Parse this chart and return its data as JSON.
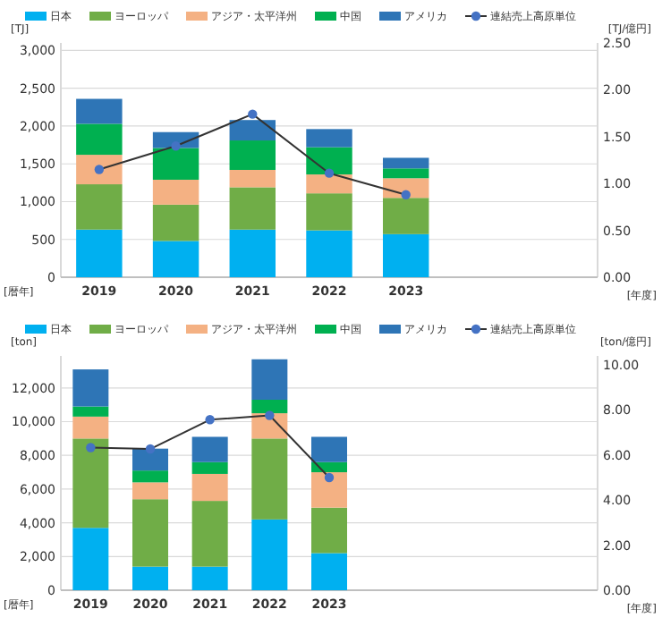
{
  "chart_data": [
    {
      "type": "bar",
      "stacked": true,
      "categories": [
        "2019",
        "2020",
        "2021",
        "2022",
        "2023",
        null,
        null
      ],
      "ylabel": "[TJ]",
      "y2label": "[TJ/億円]",
      "xlabel": "[年度]",
      "annotations": [
        "[暦年]"
      ],
      "ylim": [
        0,
        3100
      ],
      "yticks": [
        {
          "value": 0,
          "label": "0"
        },
        {
          "value": 500,
          "label": "500"
        },
        {
          "value": 1000,
          "label": "1,000"
        },
        {
          "value": 1500,
          "label": "1,500"
        },
        {
          "value": 2000,
          "label": "2,000"
        },
        {
          "value": 2500,
          "label": "2,500"
        },
        {
          "value": 3000,
          "label": "3,000"
        }
      ],
      "y2lim": [
        0,
        2.5
      ],
      "y2ticks": [
        {
          "value": 0,
          "label": "0.00"
        },
        {
          "value": 0.5,
          "label": "0.50"
        },
        {
          "value": 1,
          "label": "1.00"
        },
        {
          "value": 1.5,
          "label": "1.50"
        },
        {
          "value": 2,
          "label": "2.00"
        },
        {
          "value": 2.5,
          "label": "2.50"
        }
      ],
      "grid": "y",
      "legend": "top",
      "series": [
        {
          "name": "日本",
          "color": "#00b0f0",
          "values": [
            630,
            480,
            630,
            620,
            570,
            null,
            null
          ]
        },
        {
          "name": "ヨーロッパ",
          "color": "#70ad47",
          "values": [
            600,
            480,
            560,
            490,
            480,
            null,
            null
          ]
        },
        {
          "name": "アジア・太平洋州",
          "color": "#f4b183",
          "values": [
            390,
            330,
            230,
            250,
            260,
            null,
            null
          ]
        },
        {
          "name": "中国",
          "color": "#00b050",
          "values": [
            410,
            420,
            390,
            360,
            130,
            null,
            null
          ]
        },
        {
          "name": "アメリカ",
          "color": "#2e75b6",
          "values": [
            330,
            210,
            270,
            240,
            140,
            null,
            null
          ]
        },
        {
          "name": "連結売上高原単位",
          "type": "line",
          "axis": "y2",
          "color": "#4472c4",
          "marker": "circle",
          "values": [
            1.15,
            1.4,
            1.74,
            1.11,
            0.88,
            null,
            null
          ]
        }
      ]
    },
    {
      "type": "bar",
      "stacked": true,
      "categories": [
        "2019",
        "2020",
        "2021",
        "2022",
        "2023",
        null,
        null,
        null,
        null
      ],
      "ylabel": "[ton]",
      "y2label": "[ton/億円]",
      "xlabel": "[年度]",
      "annotations": [
        "[暦年]"
      ],
      "ylim": [
        0,
        13900
      ],
      "yticks": [
        {
          "value": 0,
          "label": "0"
        },
        {
          "value": 2000,
          "label": "2,000"
        },
        {
          "value": 4000,
          "label": "4,000"
        },
        {
          "value": 6000,
          "label": "6,000"
        },
        {
          "value": 8000,
          "label": "8,000"
        },
        {
          "value": 10000,
          "label": "10,000"
        },
        {
          "value": 12000,
          "label": "12,000"
        }
      ],
      "y2lim": [
        0,
        10.4
      ],
      "y2ticks": [
        {
          "value": 0,
          "label": "0.00"
        },
        {
          "value": 2,
          "label": "2.00"
        },
        {
          "value": 4,
          "label": "4.00"
        },
        {
          "value": 6,
          "label": "6.00"
        },
        {
          "value": 8,
          "label": "8.00"
        },
        {
          "value": 10,
          "label": "10.00"
        }
      ],
      "grid": "y",
      "legend": "top",
      "series": [
        {
          "name": "日本",
          "color": "#00b0f0",
          "values": [
            3700,
            1400,
            1400,
            4200,
            2200,
            null,
            null,
            null,
            null
          ]
        },
        {
          "name": "ヨーロッパ",
          "color": "#70ad47",
          "values": [
            5300,
            4000,
            3900,
            4800,
            2700,
            null,
            null,
            null,
            null
          ]
        },
        {
          "name": "アジア・太平洋州",
          "color": "#f4b183",
          "values": [
            1300,
            1000,
            1600,
            1500,
            2100,
            null,
            null,
            null,
            null
          ]
        },
        {
          "name": "中国",
          "color": "#00b050",
          "values": [
            600,
            700,
            700,
            800,
            600,
            null,
            null,
            null,
            null
          ]
        },
        {
          "name": "アメリカ",
          "color": "#2e75b6",
          "values": [
            2200,
            1300,
            1500,
            2400,
            1500,
            null,
            null,
            null,
            null
          ]
        },
        {
          "name": "連結売上高原単位",
          "type": "line",
          "axis": "y2",
          "color": "#4472c4",
          "marker": "circle",
          "values": [
            6.33,
            6.27,
            7.57,
            7.76,
            5.0,
            null,
            null,
            null,
            null
          ]
        }
      ]
    }
  ]
}
